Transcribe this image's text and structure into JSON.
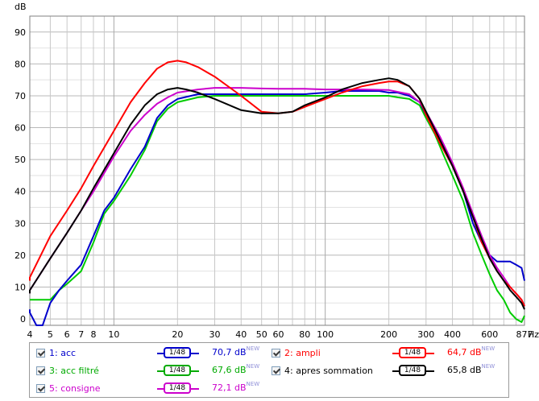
{
  "chart_data": {
    "type": "line",
    "ylabel": "dB",
    "xlabel": "Hz",
    "xscale": "log",
    "xlim": [
      4,
      877
    ],
    "ylim": [
      -2,
      95
    ],
    "grid": true,
    "y_ticks": [
      "0",
      "10",
      "20",
      "30",
      "40",
      "50",
      "60",
      "70",
      "80",
      "90"
    ],
    "x_ticks": [
      {
        "v": 4,
        "label": "4"
      },
      {
        "v": 5,
        "label": "5"
      },
      {
        "v": 6,
        "label": "6"
      },
      {
        "v": 7,
        "label": "7"
      },
      {
        "v": 8,
        "label": "8"
      },
      {
        "v": 10,
        "label": "10"
      },
      {
        "v": 20,
        "label": "20"
      },
      {
        "v": 30,
        "label": "30"
      },
      {
        "v": 40,
        "label": "40"
      },
      {
        "v": 50,
        "label": "50"
      },
      {
        "v": 60,
        "label": "60"
      },
      {
        "v": 80,
        "label": "80"
      },
      {
        "v": 100,
        "label": "100"
      },
      {
        "v": 200,
        "label": "200"
      },
      {
        "v": 300,
        "label": "300"
      },
      {
        "v": 400,
        "label": "400"
      },
      {
        "v": 600,
        "label": "600"
      },
      {
        "v": 877,
        "label": "877"
      }
    ],
    "series": [
      {
        "name": "1: acc",
        "color": "#0000cc",
        "x": [
          3.9,
          4,
          4.3,
          4.6,
          5,
          5.5,
          6,
          7,
          8,
          9,
          10,
          12,
          14,
          16,
          18,
          20,
          25,
          30,
          40,
          50,
          60,
          70,
          80,
          100,
          120,
          150,
          180,
          200,
          220,
          250,
          280,
          300,
          330,
          360,
          400,
          450,
          500,
          550,
          600,
          650,
          700,
          750,
          800,
          850,
          877
        ],
        "y": [
          3,
          2,
          -2,
          -3,
          5,
          9,
          12,
          17,
          26,
          34,
          38,
          47,
          54,
          63,
          67,
          69,
          70.5,
          70.5,
          70.5,
          70.5,
          70.5,
          70.5,
          70.5,
          71,
          71.5,
          71.5,
          71.5,
          71,
          71,
          70,
          68,
          64,
          60,
          55,
          48,
          40,
          30,
          24,
          20,
          18,
          18,
          18,
          17,
          16,
          12
        ]
      },
      {
        "name": "2: ampli",
        "color": "#ff0000",
        "x": [
          3.9,
          4,
          5,
          6,
          7,
          8,
          10,
          12,
          14,
          16,
          18,
          20,
          22,
          25,
          30,
          40,
          50,
          60,
          70,
          80,
          100,
          120,
          150,
          180,
          200,
          220,
          250,
          280,
          300,
          350,
          400,
          450,
          500,
          550,
          600,
          650,
          700,
          750,
          800,
          850,
          877
        ],
        "y": [
          12,
          13,
          26,
          34,
          41,
          48,
          59,
          68,
          74,
          78.5,
          80.5,
          81,
          80.5,
          79,
          76,
          70,
          65,
          64.5,
          65,
          66.5,
          69,
          71,
          73,
          74,
          74.5,
          74.5,
          73,
          69,
          64,
          55,
          48,
          40,
          32,
          24,
          19,
          15,
          12,
          10,
          8,
          6,
          4
        ]
      },
      {
        "name": "3: acc filtré",
        "color": "#00cc00",
        "x": [
          3.9,
          4,
          4.5,
          5,
          5.5,
          6,
          7,
          8,
          9,
          10,
          12,
          14,
          16,
          18,
          20,
          25,
          30,
          40,
          50,
          60,
          70,
          80,
          100,
          120,
          150,
          180,
          200,
          220,
          250,
          280,
          300,
          330,
          360,
          400,
          450,
          500,
          550,
          600,
          650,
          700,
          750,
          800,
          850,
          877
        ],
        "y": [
          6,
          6,
          6,
          6,
          9,
          11,
          15,
          24,
          33,
          37,
          45,
          53,
          62,
          66,
          68,
          69.5,
          70,
          70,
          70,
          70,
          70,
          70,
          70,
          70,
          70,
          70,
          70,
          69.5,
          69,
          67,
          63,
          58,
          52,
          45,
          37,
          27,
          20,
          14,
          9,
          6,
          2,
          0,
          -1,
          1
        ]
      },
      {
        "name": "4: apres sommation",
        "color": "#000000",
        "x": [
          3.9,
          4,
          5,
          6,
          7,
          8,
          10,
          12,
          14,
          16,
          18,
          20,
          22,
          25,
          30,
          40,
          50,
          60,
          70,
          80,
          100,
          120,
          150,
          180,
          200,
          220,
          250,
          280,
          300,
          350,
          400,
          450,
          500,
          550,
          600,
          650,
          700,
          750,
          800,
          850,
          877
        ],
        "y": [
          8,
          9,
          19,
          27,
          34,
          41,
          52,
          61,
          67,
          70.5,
          72,
          72.5,
          72,
          71,
          69,
          65.5,
          64.5,
          64.5,
          65,
          67,
          69.5,
          72,
          74,
          75,
          75.5,
          75,
          73,
          69,
          65,
          56,
          48,
          40,
          32,
          25,
          19,
          15,
          12,
          9,
          7,
          5,
          3
        ]
      },
      {
        "name": "5: consigne",
        "color": "#cc00cc",
        "x": [
          3.9,
          4,
          5,
          6,
          7,
          8,
          10,
          12,
          14,
          16,
          18,
          20,
          25,
          30,
          40,
          50,
          60,
          80,
          100,
          150,
          200,
          250,
          280,
          300,
          350,
          400,
          450,
          500,
          550,
          600,
          650,
          700,
          750,
          800,
          850,
          877
        ],
        "y": [
          8,
          9,
          19,
          27,
          34,
          40,
          51,
          59,
          64,
          67.5,
          69.5,
          71,
          72,
          72.5,
          72.5,
          72.3,
          72.2,
          72.2,
          72,
          72,
          71.8,
          70.5,
          68,
          65,
          57,
          49,
          41,
          33,
          26,
          20,
          16,
          13,
          10,
          8,
          6,
          4
        ]
      }
    ]
  },
  "legend": {
    "items": [
      {
        "label": "1: acc",
        "color": "#0000cc",
        "slope": "1/48",
        "value": "70,7 dB",
        "value_color": "#0000cc",
        "sup": "NEW"
      },
      {
        "label": "2: ampli",
        "color": "#ff0000",
        "slope": "1/48",
        "value": "64,7 dB",
        "value_color": "#ff0000",
        "sup": "NEW"
      },
      {
        "label": "3: acc filtré",
        "color": "#00aa00",
        "slope": "1/48",
        "value": "67,6 dB",
        "value_color": "#00aa00",
        "sup": "NEW"
      },
      {
        "label": "4: apres sommation",
        "color": "#000000",
        "slope": "1/48",
        "value": "65,8 dB",
        "value_color": "#000000",
        "sup": "NEW"
      },
      {
        "label": "5: consigne",
        "color": "#cc00cc",
        "slope": "1/48",
        "value": "72,1 dB",
        "value_color": "#cc00cc",
        "sup": "NEW"
      }
    ]
  },
  "colors": {
    "grid": "#c8c8c8",
    "axis": "#808080"
  }
}
